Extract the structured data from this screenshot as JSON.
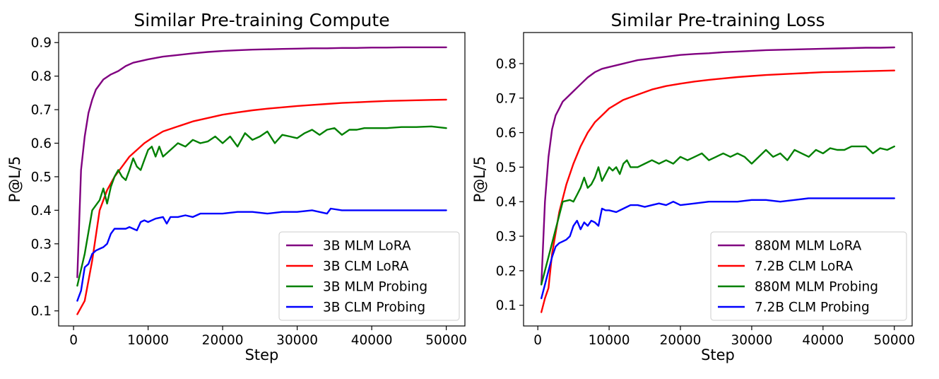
{
  "chart_data": [
    {
      "type": "line",
      "title": "Similar Pre-training Compute",
      "xlabel": "Step",
      "ylabel": "P@L/5",
      "xlim": [
        -2000,
        52500
      ],
      "ylim": [
        0.055,
        0.93
      ],
      "xticks": [
        0,
        10000,
        20000,
        30000,
        40000,
        50000
      ],
      "yticks": [
        0.1,
        0.2,
        0.3,
        0.4,
        0.5,
        0.6,
        0.7,
        0.8,
        0.9
      ],
      "grid": false,
      "legend": "bottom-right",
      "series": [
        {
          "name": "3B MLM LoRA",
          "color": "#800080",
          "x": [
            500,
            1000,
            1500,
            2000,
            2500,
            3000,
            4000,
            5000,
            6000,
            7000,
            8000,
            9000,
            10000,
            12000,
            14000,
            16000,
            18000,
            20000,
            22000,
            24000,
            26000,
            28000,
            30000,
            32000,
            34000,
            36000,
            38000,
            40000,
            42000,
            44000,
            46000,
            48000,
            50000
          ],
          "y": [
            0.2,
            0.52,
            0.62,
            0.69,
            0.73,
            0.76,
            0.79,
            0.805,
            0.815,
            0.83,
            0.84,
            0.845,
            0.85,
            0.858,
            0.863,
            0.868,
            0.872,
            0.875,
            0.877,
            0.879,
            0.88,
            0.881,
            0.882,
            0.883,
            0.883,
            0.884,
            0.884,
            0.885,
            0.885,
            0.886,
            0.886,
            0.886,
            0.886
          ]
        },
        {
          "name": "3B CLM LoRA",
          "color": "#ff0000",
          "x": [
            500,
            1500,
            2500,
            3500,
            4500,
            5500,
            6500,
            7500,
            8500,
            9500,
            10500,
            12000,
            14000,
            16000,
            18000,
            20000,
            22000,
            24000,
            26000,
            28000,
            30000,
            32000,
            34000,
            36000,
            38000,
            40000,
            42000,
            44000,
            46000,
            48000,
            50000
          ],
          "y": [
            0.09,
            0.13,
            0.25,
            0.4,
            0.46,
            0.5,
            0.53,
            0.56,
            0.58,
            0.6,
            0.615,
            0.635,
            0.65,
            0.665,
            0.675,
            0.685,
            0.692,
            0.698,
            0.703,
            0.707,
            0.711,
            0.714,
            0.717,
            0.72,
            0.722,
            0.724,
            0.726,
            0.727,
            0.728,
            0.729,
            0.73
          ]
        },
        {
          "name": "3B MLM Probing",
          "color": "#008000",
          "x": [
            500,
            1500,
            2500,
            3500,
            4000,
            4500,
            5000,
            5500,
            6000,
            6500,
            7000,
            7500,
            8000,
            8500,
            9000,
            9500,
            10000,
            10500,
            11000,
            11500,
            12000,
            13000,
            14000,
            15000,
            16000,
            17000,
            18000,
            19000,
            20000,
            21000,
            22000,
            23000,
            24000,
            25000,
            26000,
            27000,
            28000,
            29000,
            30000,
            31000,
            32000,
            33000,
            34000,
            35000,
            36000,
            37000,
            38000,
            39000,
            40000,
            42000,
            44000,
            46000,
            48000,
            50000
          ],
          "y": [
            0.175,
            0.27,
            0.4,
            0.43,
            0.465,
            0.42,
            0.47,
            0.5,
            0.52,
            0.5,
            0.49,
            0.52,
            0.555,
            0.53,
            0.52,
            0.55,
            0.58,
            0.59,
            0.56,
            0.59,
            0.56,
            0.58,
            0.6,
            0.59,
            0.61,
            0.6,
            0.605,
            0.62,
            0.6,
            0.62,
            0.59,
            0.63,
            0.61,
            0.62,
            0.635,
            0.6,
            0.625,
            0.62,
            0.615,
            0.63,
            0.64,
            0.625,
            0.64,
            0.645,
            0.625,
            0.64,
            0.64,
            0.645,
            0.645,
            0.645,
            0.648,
            0.648,
            0.65,
            0.645
          ]
        },
        {
          "name": "3B CLM Probing",
          "color": "#0000ff",
          "x": [
            500,
            1000,
            1500,
            2000,
            2500,
            3000,
            3500,
            4000,
            4500,
            5000,
            5500,
            6000,
            7000,
            7500,
            8000,
            8500,
            9000,
            9500,
            10000,
            11000,
            12000,
            12500,
            13000,
            14000,
            15000,
            16000,
            17000,
            18000,
            20000,
            22000,
            24000,
            26000,
            28000,
            30000,
            32000,
            34000,
            34500,
            36000,
            38000,
            40000,
            42000,
            44000,
            46000,
            48000,
            50000
          ],
          "y": [
            0.13,
            0.16,
            0.23,
            0.24,
            0.27,
            0.28,
            0.285,
            0.29,
            0.3,
            0.33,
            0.345,
            0.345,
            0.345,
            0.35,
            0.345,
            0.34,
            0.365,
            0.37,
            0.365,
            0.375,
            0.38,
            0.36,
            0.38,
            0.38,
            0.385,
            0.38,
            0.39,
            0.39,
            0.39,
            0.395,
            0.395,
            0.39,
            0.395,
            0.395,
            0.4,
            0.39,
            0.405,
            0.4,
            0.4,
            0.4,
            0.4,
            0.4,
            0.4,
            0.4,
            0.4
          ]
        }
      ]
    },
    {
      "type": "line",
      "title": "Similar Pre-training Loss",
      "xlabel": "Step",
      "ylabel": "P@L/5",
      "xlim": [
        -2000,
        52500
      ],
      "ylim": [
        0.04,
        0.89
      ],
      "xticks": [
        0,
        10000,
        20000,
        30000,
        40000,
        50000
      ],
      "yticks": [
        0.1,
        0.2,
        0.3,
        0.4,
        0.5,
        0.6,
        0.7,
        0.8
      ],
      "grid": false,
      "legend": "bottom-right",
      "series": [
        {
          "name": "880M MLM LoRA",
          "color": "#800080",
          "x": [
            500,
            1000,
            1500,
            2000,
            2500,
            3000,
            3500,
            4000,
            5000,
            6000,
            7000,
            8000,
            9000,
            10000,
            12000,
            14000,
            16000,
            18000,
            20000,
            22000,
            24000,
            26000,
            28000,
            30000,
            32000,
            34000,
            36000,
            38000,
            40000,
            42000,
            44000,
            46000,
            48000,
            50000
          ],
          "y": [
            0.16,
            0.4,
            0.53,
            0.61,
            0.65,
            0.67,
            0.69,
            0.7,
            0.72,
            0.74,
            0.76,
            0.775,
            0.785,
            0.79,
            0.8,
            0.81,
            0.815,
            0.82,
            0.825,
            0.828,
            0.83,
            0.833,
            0.835,
            0.837,
            0.839,
            0.84,
            0.841,
            0.842,
            0.843,
            0.844,
            0.845,
            0.846,
            0.846,
            0.847
          ]
        },
        {
          "name": "7.2B CLM LoRA",
          "color": "#ff0000",
          "x": [
            500,
            1000,
            1500,
            2000,
            3000,
            4000,
            5000,
            6000,
            7000,
            8000,
            9000,
            10000,
            12000,
            14000,
            16000,
            18000,
            20000,
            22000,
            24000,
            26000,
            28000,
            30000,
            32000,
            34000,
            36000,
            38000,
            40000,
            42000,
            44000,
            46000,
            48000,
            50000
          ],
          "y": [
            0.08,
            0.12,
            0.15,
            0.25,
            0.37,
            0.45,
            0.51,
            0.56,
            0.6,
            0.63,
            0.65,
            0.67,
            0.695,
            0.71,
            0.725,
            0.735,
            0.742,
            0.748,
            0.753,
            0.757,
            0.761,
            0.764,
            0.767,
            0.769,
            0.771,
            0.773,
            0.775,
            0.776,
            0.777,
            0.778,
            0.779,
            0.78
          ]
        },
        {
          "name": "880M MLM Probing",
          "color": "#008000",
          "x": [
            500,
            1500,
            2500,
            3500,
            4500,
            5000,
            5500,
            6000,
            6500,
            7000,
            7500,
            8000,
            8500,
            9000,
            9500,
            10000,
            10500,
            11000,
            11500,
            12000,
            12500,
            13000,
            14000,
            15000,
            16000,
            17000,
            18000,
            19000,
            20000,
            21000,
            22000,
            23000,
            24000,
            25000,
            26000,
            27000,
            28000,
            29000,
            30000,
            31000,
            32000,
            33000,
            34000,
            35000,
            36000,
            37000,
            38000,
            39000,
            40000,
            41000,
            42000,
            43000,
            44000,
            45000,
            46000,
            47000,
            48000,
            49000,
            50000
          ],
          "y": [
            0.16,
            0.24,
            0.32,
            0.4,
            0.405,
            0.4,
            0.42,
            0.44,
            0.47,
            0.44,
            0.45,
            0.47,
            0.5,
            0.46,
            0.48,
            0.5,
            0.49,
            0.5,
            0.48,
            0.51,
            0.52,
            0.5,
            0.5,
            0.51,
            0.52,
            0.51,
            0.52,
            0.51,
            0.53,
            0.52,
            0.53,
            0.54,
            0.52,
            0.53,
            0.54,
            0.53,
            0.54,
            0.53,
            0.51,
            0.53,
            0.55,
            0.53,
            0.54,
            0.52,
            0.55,
            0.54,
            0.53,
            0.55,
            0.54,
            0.555,
            0.55,
            0.55,
            0.56,
            0.56,
            0.56,
            0.54,
            0.555,
            0.55,
            0.56
          ]
        },
        {
          "name": "7.2B CLM Probing",
          "color": "#0000ff",
          "x": [
            500,
            1000,
            1500,
            2000,
            2500,
            3000,
            3500,
            4000,
            4500,
            5000,
            5500,
            6000,
            6500,
            7000,
            7500,
            8000,
            8500,
            9000,
            9500,
            10000,
            11000,
            12000,
            13000,
            14000,
            15000,
            16000,
            17000,
            18000,
            19000,
            20000,
            22000,
            24000,
            26000,
            28000,
            30000,
            32000,
            34000,
            36000,
            38000,
            40000,
            42000,
            44000,
            46000,
            48000,
            50000
          ],
          "y": [
            0.12,
            0.16,
            0.2,
            0.24,
            0.27,
            0.28,
            0.285,
            0.29,
            0.3,
            0.33,
            0.345,
            0.32,
            0.34,
            0.33,
            0.345,
            0.34,
            0.33,
            0.38,
            0.375,
            0.375,
            0.37,
            0.38,
            0.39,
            0.39,
            0.385,
            0.39,
            0.395,
            0.39,
            0.4,
            0.39,
            0.395,
            0.4,
            0.4,
            0.4,
            0.405,
            0.405,
            0.4,
            0.405,
            0.41,
            0.41,
            0.41,
            0.41,
            0.41,
            0.41,
            0.41
          ]
        }
      ]
    }
  ]
}
